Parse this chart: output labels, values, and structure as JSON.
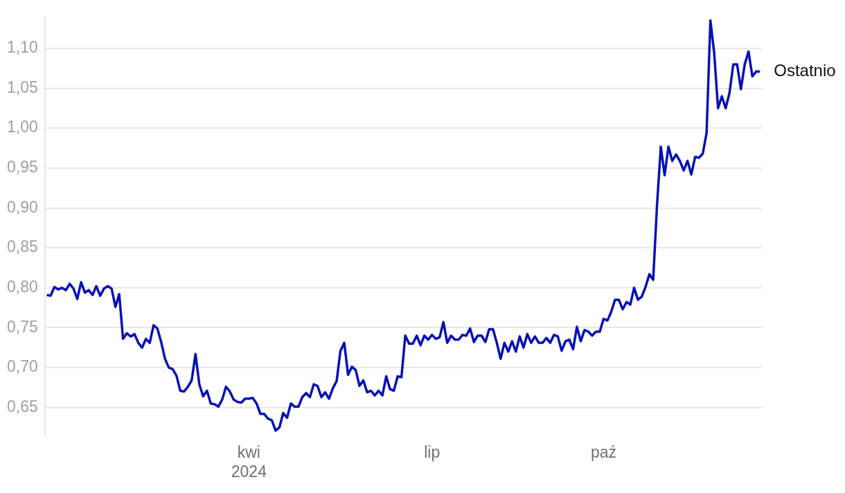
{
  "chart_data": {
    "type": "line",
    "categories": [
      null,
      null,
      null,
      null,
      null,
      null,
      null,
      null,
      null,
      null,
      null,
      null,
      null,
      null,
      null,
      null,
      null,
      null,
      null,
      null,
      null,
      null,
      null,
      null,
      null,
      null,
      null,
      null,
      null,
      null,
      null,
      null,
      null,
      null,
      null,
      null,
      null,
      null,
      null,
      null,
      null,
      null,
      null,
      null,
      null,
      null,
      null,
      null,
      null,
      null,
      null,
      null,
      null,
      "kwi\n2024",
      null,
      null,
      null,
      null,
      null,
      null,
      null,
      null,
      null,
      null,
      null,
      null,
      null,
      null,
      null,
      null,
      null,
      null,
      null,
      null,
      null,
      null,
      null,
      null,
      null,
      null,
      null,
      null,
      null,
      null,
      null,
      null,
      null,
      null,
      null,
      null,
      null,
      null,
      null,
      null,
      null,
      null,
      null,
      null,
      null,
      null,
      null,
      "lip",
      null,
      null,
      null,
      null,
      null,
      null,
      null,
      null,
      null,
      null,
      null,
      null,
      null,
      null,
      null,
      null,
      null,
      null,
      null,
      null,
      null,
      null,
      null,
      null,
      null,
      null,
      null,
      null,
      null,
      null,
      null,
      null,
      null,
      null,
      null,
      null,
      null,
      null,
      null,
      null,
      null,
      null,
      null,
      null,
      "paź",
      null,
      null,
      null,
      null,
      null,
      null,
      null,
      null,
      null,
      null,
      null,
      null,
      null,
      null,
      null,
      null,
      null,
      null,
      null,
      null,
      null,
      null,
      null,
      null,
      null,
      null,
      null,
      null,
      null,
      null,
      null,
      null,
      null,
      null,
      null,
      null,
      null,
      null,
      null,
      null,
      null
    ],
    "series": [
      {
        "color": "#0511b5",
        "values": [
          0.791,
          0.79,
          0.801,
          0.798,
          0.8,
          0.797,
          0.805,
          0.799,
          0.786,
          0.807,
          0.794,
          0.797,
          0.791,
          0.802,
          0.79,
          0.799,
          0.802,
          0.799,
          0.776,
          0.792,
          0.736,
          0.743,
          0.739,
          0.742,
          0.731,
          0.725,
          0.736,
          0.731,
          0.753,
          0.749,
          0.732,
          0.711,
          0.7,
          0.698,
          0.69,
          0.671,
          0.67,
          0.676,
          0.684,
          0.717,
          0.679,
          0.664,
          0.671,
          0.655,
          0.654,
          0.651,
          0.66,
          0.676,
          0.67,
          0.66,
          0.657,
          0.656,
          0.661,
          0.661,
          0.662,
          0.655,
          0.642,
          0.642,
          0.636,
          0.634,
          0.621,
          0.625,
          0.643,
          0.637,
          0.655,
          0.651,
          0.651,
          0.663,
          0.668,
          0.663,
          0.679,
          0.677,
          0.663,
          0.669,
          0.661,
          0.674,
          0.683,
          0.721,
          0.731,
          0.691,
          0.701,
          0.697,
          0.677,
          0.684,
          0.669,
          0.671,
          0.665,
          0.671,
          0.665,
          0.689,
          0.673,
          0.671,
          0.689,
          0.688,
          0.74,
          0.73,
          0.73,
          0.74,
          0.728,
          0.74,
          0.735,
          0.741,
          0.736,
          0.738,
          0.757,
          0.731,
          0.74,
          0.735,
          0.735,
          0.741,
          0.74,
          0.749,
          0.732,
          0.74,
          0.74,
          0.732,
          0.748,
          0.748,
          0.731,
          0.711,
          0.731,
          0.72,
          0.733,
          0.72,
          0.739,
          0.725,
          0.742,
          0.731,
          0.739,
          0.731,
          0.731,
          0.737,
          0.731,
          0.741,
          0.739,
          0.721,
          0.733,
          0.735,
          0.723,
          0.751,
          0.733,
          0.747,
          0.745,
          0.74,
          0.745,
          0.745,
          0.761,
          0.759,
          0.77,
          0.785,
          0.785,
          0.773,
          0.782,
          0.779,
          0.8,
          0.785,
          0.789,
          0.801,
          0.817,
          0.81,
          0.903,
          0.977,
          0.941,
          0.977,
          0.959,
          0.967,
          0.959,
          0.947,
          0.959,
          0.942,
          0.964,
          0.963,
          0.968,
          0.994,
          1.135,
          1.094,
          1.025,
          1.04,
          1.025,
          1.044,
          1.08,
          1.08,
          1.049,
          1.08,
          1.096,
          1.065,
          1.071,
          1.071
        ]
      }
    ],
    "ylim": [
      0.615,
      1.14
    ],
    "yticks": [
      {
        "value": 0.65,
        "label": "0,65"
      },
      {
        "value": 0.7,
        "label": "0,70"
      },
      {
        "value": 0.75,
        "label": "0,75"
      },
      {
        "value": 0.8,
        "label": "0,80"
      },
      {
        "value": 0.85,
        "label": "0,85"
      },
      {
        "value": 0.9,
        "label": "0,90"
      },
      {
        "value": 0.95,
        "label": "0,95"
      },
      {
        "value": 1.0,
        "label": "1,00"
      },
      {
        "value": 1.05,
        "label": "1,05"
      },
      {
        "value": 1.1,
        "label": "1,10"
      }
    ],
    "grid": "y",
    "legend": false,
    "marker": "none",
    "line_style": "solid",
    "annotations": [
      "Ostatnio"
    ]
  }
}
